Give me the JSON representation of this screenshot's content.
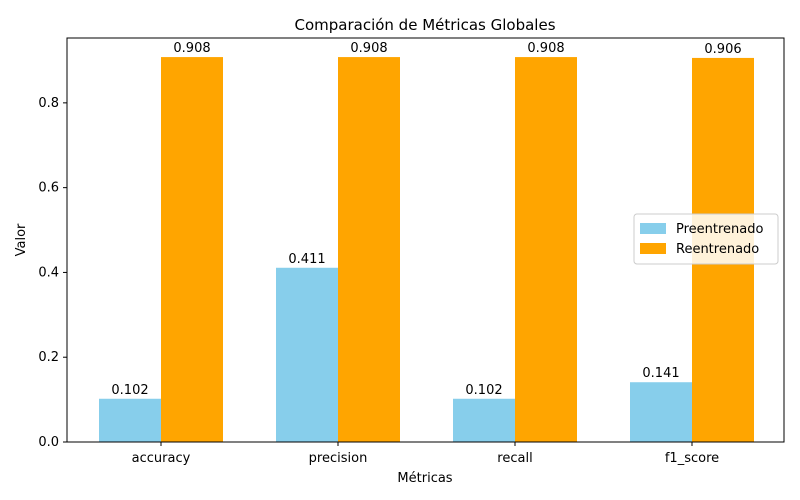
{
  "chart_data": {
    "type": "bar",
    "title": "Comparación de Métricas Globales",
    "xlabel": "Métricas",
    "ylabel": "Valor",
    "categories": [
      "accuracy",
      "precision",
      "recall",
      "f1_score"
    ],
    "series": [
      {
        "name": "Preentrenado",
        "values": [
          0.102,
          0.411,
          0.102,
          0.141
        ],
        "labels": [
          "0.102",
          "0.411",
          "0.102",
          "0.141"
        ],
        "color": "#87ceeb"
      },
      {
        "name": "Reentrenado",
        "values": [
          0.908,
          0.908,
          0.908,
          0.906
        ],
        "labels": [
          "0.908",
          "0.908",
          "0.908",
          "0.906"
        ],
        "color": "#ffa500"
      }
    ],
    "ylim": [
      0,
      0.953
    ],
    "yticks": [
      0.0,
      0.2,
      0.4,
      0.6,
      0.8
    ],
    "ytick_labels": [
      "0.0",
      "0.2",
      "0.4",
      "0.6",
      "0.8"
    ],
    "grid": false,
    "legend_position": "center-right"
  }
}
